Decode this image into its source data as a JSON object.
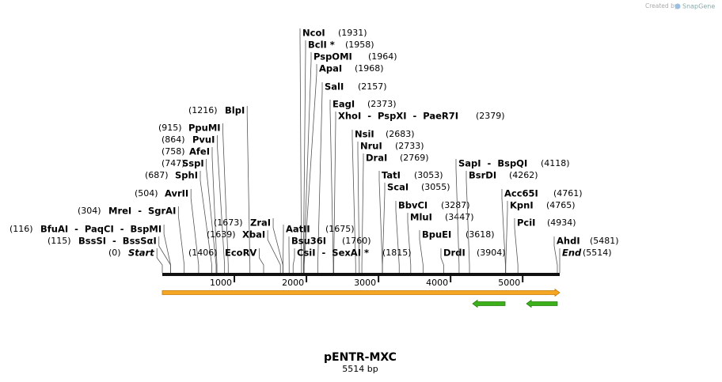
{
  "credit": {
    "prefix": "Created by",
    "brand": "SnapGene"
  },
  "map": {
    "title": "pENTR-MXC",
    "length_label": "5514 bp",
    "scale": {
      "xlim": [
        0,
        5514
      ],
      "xticks": [
        1000,
        2000,
        3000,
        4000,
        5000
      ]
    },
    "features": [
      {
        "start": 0,
        "end": 5514,
        "direction": "forward",
        "color": "#f5a623"
      },
      {
        "start": 4306,
        "end": 4756,
        "direction": "reverse",
        "color": "#3cb01b"
      },
      {
        "start": 5053,
        "end": 5481,
        "direction": "reverse",
        "color": "#3cb01b"
      }
    ],
    "sites": [
      {
        "label": "NcoI",
        "position": {
          "value": 1931,
          "label": "(1931)"
        }
      },
      {
        "label": "BclI *",
        "position": {
          "value": 1958,
          "label": "(1958)"
        }
      },
      {
        "label": "PspOMI",
        "position": {
          "value": 1964,
          "label": "(1964)"
        }
      },
      {
        "label": "ApaI",
        "position": {
          "value": 1968,
          "label": "(1968)"
        }
      },
      {
        "label": "SalI",
        "position": {
          "value": 2157,
          "label": "(2157)"
        }
      },
      {
        "label": "EagI",
        "position": {
          "value": 2373,
          "label": "(2373)"
        }
      },
      {
        "label": "XhoI  -  PspXI  -  PaeR7I",
        "position": {
          "value": 2379,
          "label": "(2379)"
        }
      },
      {
        "label": "NsiI",
        "position": {
          "value": 2683,
          "label": "(2683)"
        }
      },
      {
        "label": "NruI",
        "position": {
          "value": 2733,
          "label": "(2733)"
        }
      },
      {
        "label": "DraI",
        "position": {
          "value": 2769,
          "label": "(2769)"
        }
      },
      {
        "label": "TatI",
        "position": {
          "value": 3053,
          "label": "(3053)"
        }
      },
      {
        "label": "ScaI",
        "position": {
          "value": 3055,
          "label": "(3055)"
        }
      },
      {
        "label": "BbvCI",
        "position": {
          "value": 3287,
          "label": "(3287)"
        }
      },
      {
        "label": "MluI",
        "position": {
          "value": 3447,
          "label": "(3447)"
        }
      },
      {
        "label": "BpuEI",
        "position": {
          "value": 3618,
          "label": "(3618)"
        }
      },
      {
        "label": "DrdI",
        "position": {
          "value": 3904,
          "label": "(3904)"
        }
      },
      {
        "label": "SapI  -  BspQI",
        "position": {
          "value": 4118,
          "label": "(4118)"
        }
      },
      {
        "label": "BsrDI",
        "position": {
          "value": 4262,
          "label": "(4262)"
        }
      },
      {
        "label": "Acc65I",
        "position": {
          "value": 4761,
          "label": "(4761)"
        }
      },
      {
        "label": "KpnI",
        "position": {
          "value": 4765,
          "label": "(4765)"
        }
      },
      {
        "label": "PciI",
        "position": {
          "value": 4934,
          "label": "(4934)"
        }
      },
      {
        "label": "AhdI",
        "position": {
          "value": 5481,
          "label": "(5481)"
        }
      },
      {
        "label": "End",
        "italic": true,
        "position": {
          "value": 5514,
          "label": "(5514)"
        }
      },
      {
        "label": "BlpI",
        "position": {
          "value": 1216,
          "label": "(1216)"
        }
      },
      {
        "label": "PpuMI",
        "position": {
          "value": 915,
          "label": "(915)"
        }
      },
      {
        "label": "PvuI",
        "position": {
          "value": 864,
          "label": "(864)"
        }
      },
      {
        "label": "AfeI",
        "position": {
          "value": 758,
          "label": "(758)"
        }
      },
      {
        "label": "SspI",
        "position": {
          "value": 747,
          "label": "(747)"
        }
      },
      {
        "label": "SphI",
        "position": {
          "value": 687,
          "label": "(687)"
        }
      },
      {
        "label": "AvrII",
        "position": {
          "value": 504,
          "label": "(504)"
        }
      },
      {
        "label": "MreI  -  SgrAI",
        "position": {
          "value": 304,
          "label": "(304)"
        }
      },
      {
        "label": "BfuAI  -  PaqCI  -  BspMI",
        "position": {
          "value": 116,
          "label": "(116)"
        }
      },
      {
        "label": "BssSI  -  BssSαI",
        "position": {
          "value": 115,
          "label": "(115)"
        }
      },
      {
        "label": "Start",
        "italic": true,
        "position": {
          "value": 0,
          "label": "(0)"
        }
      },
      {
        "label": "ZraI",
        "position": {
          "value": 1673,
          "label": "(1673)"
        }
      },
      {
        "label": "XbaI",
        "position": {
          "value": 1639,
          "label": "(1639)"
        }
      },
      {
        "label": "EcoRV",
        "position": {
          "value": 1406,
          "label": "(1406)"
        }
      },
      {
        "label": "AatII",
        "position": {
          "value": 1675,
          "label": "(1675)"
        }
      },
      {
        "label": "Bsu36I",
        "position": {
          "value": 1760,
          "label": "(1760)"
        }
      },
      {
        "label": "CsiI  -  SexAI *",
        "position": {
          "value": 1815,
          "label": "(1815)"
        }
      }
    ]
  }
}
